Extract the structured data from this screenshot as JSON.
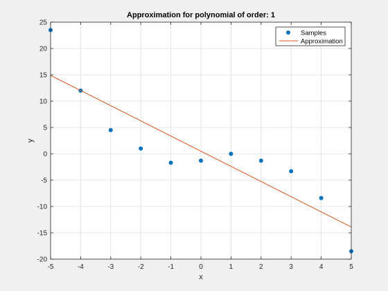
{
  "chart_data": {
    "type": "scatter",
    "title": "Approximation for polynomial of order: 1",
    "xlabel": "x",
    "ylabel": "y",
    "xlim": [
      -5,
      5
    ],
    "ylim": [
      -20,
      25
    ],
    "xticks": [
      -5,
      -4,
      -3,
      -2,
      -1,
      0,
      1,
      2,
      3,
      4,
      5
    ],
    "yticks": [
      -20,
      -15,
      -10,
      -5,
      0,
      5,
      10,
      15,
      20,
      25
    ],
    "grid": true,
    "legend_position": "top-right",
    "series": [
      {
        "name": "Samples",
        "kind": "markers",
        "color": "#0072BD",
        "x": [
          -5,
          -4,
          -3,
          -2,
          -1,
          0,
          1,
          2,
          3,
          4,
          5
        ],
        "y": [
          23.5,
          12.0,
          4.5,
          1.0,
          -1.7,
          -1.3,
          0.0,
          -1.3,
          -3.3,
          -8.4,
          -18.5
        ]
      },
      {
        "name": "Approximation",
        "kind": "line",
        "color": "#D95319",
        "x": [
          -5,
          5
        ],
        "y": [
          14.9,
          -13.9
        ]
      }
    ]
  }
}
